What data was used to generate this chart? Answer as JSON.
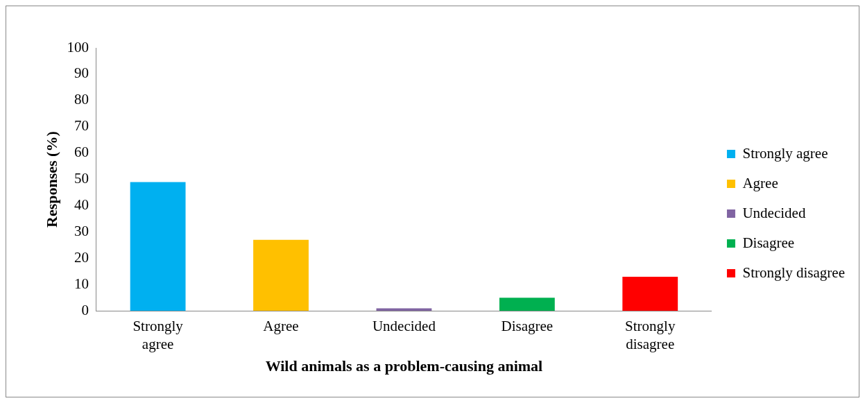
{
  "chart_data": {
    "type": "bar",
    "xlabel": "Wild animals as a problem-causing animal",
    "ylabel": "Responses (%)",
    "categories": [
      "Strongly agree",
      "Agree",
      "Undecided",
      "Disagree",
      "Strongly disagree"
    ],
    "series": [
      {
        "name": "Strongly agree",
        "color": "#00b0f0",
        "values": [
          49,
          null,
          null,
          null,
          null
        ]
      },
      {
        "name": "Agree",
        "color": "#ffc000",
        "values": [
          null,
          27,
          null,
          null,
          null
        ]
      },
      {
        "name": "Undecided",
        "color": "#8064a2",
        "values": [
          null,
          null,
          1,
          null,
          null
        ]
      },
      {
        "name": "Disagree",
        "color": "#00b050",
        "values": [
          null,
          null,
          null,
          5,
          null
        ]
      },
      {
        "name": "Strongly disagree",
        "color": "#ff0000",
        "values": [
          null,
          null,
          null,
          null,
          13
        ]
      }
    ],
    "ylim": [
      0,
      100
    ],
    "yticks": [
      0,
      10,
      20,
      30,
      40,
      50,
      60,
      70,
      80,
      90,
      100
    ],
    "grid": false,
    "legend": "right"
  }
}
